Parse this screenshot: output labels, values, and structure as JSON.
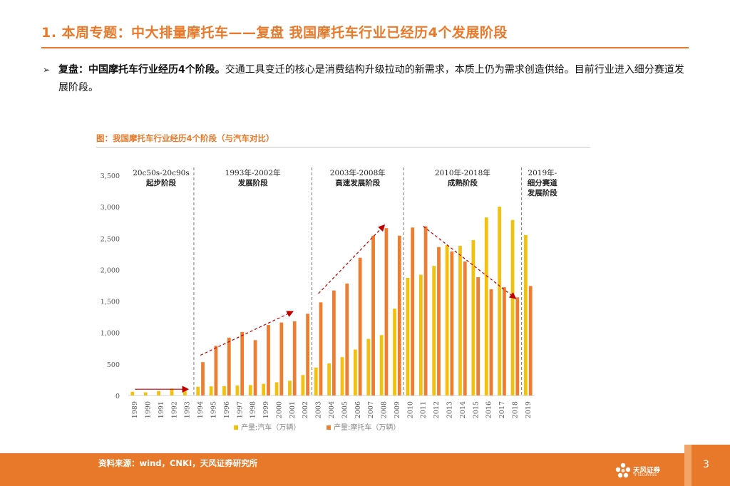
{
  "header": {
    "title": "1. 本周专题：中大排量摩托车——复盘 我国摩托车行业已经历4个发展阶段"
  },
  "bullet": {
    "marker": "➢",
    "bold": "复盘：中国摩托车行业经历4个阶段。",
    "text": "交通工具变迁的核心是消费结构升级拉动的新需求，本质上仍为需求创造供给。目前行业进入细分赛道发展阶段。"
  },
  "figure": {
    "caption": "图：我国摩托车行业经历4个阶段（与汽车对比）"
  },
  "chart_data": {
    "type": "bar",
    "categories": [
      "1989",
      "1990",
      "1991",
      "1992",
      "1993",
      "1994",
      "1995",
      "1996",
      "1997",
      "1998",
      "1999",
      "2000",
      "2001",
      "2002",
      "2003",
      "2004",
      "2005",
      "2006",
      "2007",
      "2008",
      "2009",
      "2010",
      "2011",
      "2012",
      "2013",
      "2014",
      "2015",
      "2016",
      "2017",
      "2018",
      "2019"
    ],
    "series": [
      {
        "name": "产量:汽车（万辆）",
        "color": "#f2c00f",
        "values": [
          60,
          50,
          70,
          110,
          130,
          140,
          145,
          150,
          160,
          165,
          185,
          210,
          235,
          325,
          445,
          510,
          610,
          730,
          900,
          960,
          1380,
          1870,
          1920,
          2060,
          2390,
          2380,
          2470,
          2830,
          3000,
          2790,
          2550
        ]
      },
      {
        "name": "产量:摩托车（万辆）",
        "color": "#ed7d31",
        "values": [
          null,
          null,
          null,
          null,
          null,
          530,
          790,
          920,
          1010,
          880,
          1120,
          1160,
          1180,
          1300,
          1480,
          1670,
          1780,
          2190,
          2540,
          2660,
          2540,
          2670,
          2690,
          2360,
          2290,
          2130,
          1880,
          1690,
          1720,
          1560,
          1740
        ]
      }
    ],
    "ylim": [
      0,
      3500
    ],
    "yticks": [
      0,
      500,
      1000,
      1500,
      2000,
      2500,
      3000,
      3500
    ],
    "ytick_labels": [
      "0",
      "500",
      "1,000",
      "1,500",
      "2,000",
      "2,500",
      "3,000",
      "3,500"
    ],
    "legend_position": "bottom",
    "stages": [
      {
        "label_line1": "20c50s-20c90s",
        "label_line2": "起步阶段"
      },
      {
        "label_line1": "1993年-2002年",
        "label_line2": "发展阶段"
      },
      {
        "label_line1": "2003年-2008年",
        "label_line2": "高速发展阶段"
      },
      {
        "label_line1": "2010年-2018年",
        "label_line2": "成熟阶段"
      },
      {
        "label_line1": "2019年-",
        "label_line2": "细分赛道",
        "label_line3": "发展阶段"
      }
    ],
    "stage_dividers_after": [
      "1993",
      "2002",
      "2009"
    ],
    "stage_dividers_before": [
      "2019"
    ],
    "trend_arrows": [
      {
        "from": [
          "1989",
          100
        ],
        "to": [
          "1993",
          100
        ]
      },
      {
        "from": [
          "1994",
          640
        ],
        "to": [
          "2001",
          1330
        ]
      },
      {
        "from": [
          "2003",
          1620
        ],
        "to": [
          "2008",
          2700
        ]
      },
      {
        "from": [
          "2011",
          2690
        ],
        "to": [
          "2018",
          1550
        ]
      }
    ],
    "arrow_color": "#c00000"
  },
  "footer": {
    "source": "资料来源：wind，CNKI，天风证券研究所",
    "logo_name": "天风证券",
    "logo_sub": "TF SECURITIES",
    "page_number": "3"
  }
}
